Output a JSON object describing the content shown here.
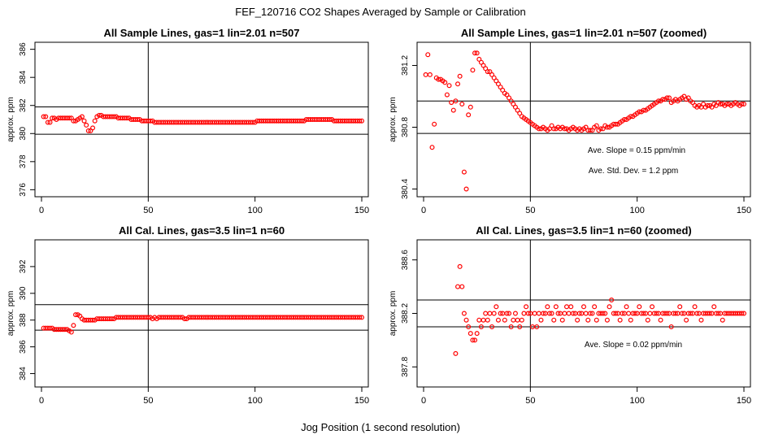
{
  "figure": {
    "title": "FEF_120716  CO2 Shapes Averaged by Sample or Calibration",
    "xlabel": "Jog Position (1 second resolution)"
  },
  "colors": {
    "points": "#ff0000",
    "axes": "#000000"
  },
  "chart_data": [
    {
      "type": "scatter",
      "title": "All Sample Lines, gas=1 lin=2.01 n=507",
      "ylabel": "approx. ppm",
      "xlim": [
        0,
        150
      ],
      "ylim": [
        375.5,
        386.5
      ],
      "xticks": [
        0,
        50,
        100,
        150
      ],
      "yticks": [
        376,
        378,
        380,
        382,
        384,
        386
      ],
      "vline": 50,
      "hlines": [
        379.95,
        381.9
      ],
      "annotations": [],
      "series": [
        {
          "x": "1..150",
          "values": [
            381.2,
            381.2,
            380.8,
            380.8,
            381.1,
            381.1,
            381.0,
            381.1,
            381.1,
            381.1,
            381.1,
            381.1,
            381.1,
            381.1,
            380.9,
            380.9,
            381.0,
            381.1,
            381.2,
            380.9,
            380.6,
            380.2,
            380.2,
            380.4,
            380.9,
            381.2,
            381.3,
            381.3,
            381.2,
            381.2,
            381.2,
            381.2,
            381.2,
            381.2,
            381.2,
            381.1,
            381.1,
            381.1,
            381.1,
            381.1,
            381.1,
            381.0,
            381.0,
            381.0,
            381.0,
            381.0,
            380.9,
            380.9,
            380.9,
            380.9,
            380.9,
            380.9,
            380.8,
            380.8,
            380.8,
            380.8,
            380.8,
            380.8,
            380.8,
            380.8,
            380.8,
            380.8,
            380.8,
            380.8,
            380.8,
            380.8,
            380.8,
            380.8,
            380.8,
            380.8,
            380.8,
            380.8,
            380.8,
            380.8,
            380.8,
            380.8,
            380.8,
            380.8,
            380.8,
            380.8,
            380.8,
            380.8,
            380.8,
            380.8,
            380.8,
            380.8,
            380.8,
            380.8,
            380.8,
            380.8,
            380.8,
            380.8,
            380.8,
            380.8,
            380.8,
            380.8,
            380.8,
            380.8,
            380.8,
            380.8,
            380.9,
            380.9,
            380.9,
            380.9,
            380.9,
            380.9,
            380.9,
            380.9,
            380.9,
            380.9,
            380.9,
            380.9,
            380.9,
            380.9,
            380.9,
            380.9,
            380.9,
            380.9,
            380.9,
            380.9,
            380.9,
            380.9,
            380.9,
            381.0,
            381.0,
            381.0,
            381.0,
            381.0,
            381.0,
            381.0,
            381.0,
            381.0,
            381.0,
            381.0,
            381.0,
            381.0,
            380.9,
            380.9,
            380.9,
            380.9,
            380.9,
            380.9,
            380.9,
            380.9,
            380.9,
            380.9,
            380.9,
            380.9,
            380.9,
            380.9
          ]
        }
      ]
    },
    {
      "type": "scatter",
      "title": "All Sample Lines, gas=1 lin=2.01 n=507 (zoomed)",
      "ylabel": "approx. ppm",
      "xlim": [
        0,
        150
      ],
      "ylim": [
        380.35,
        381.35
      ],
      "xticks": [
        0,
        50,
        100,
        150
      ],
      "yticks": [
        380.4,
        380.8,
        381.2
      ],
      "vline": 50,
      "hlines": [
        380.76,
        380.97
      ],
      "annotations": [
        "Ave. Slope =  0.15  ppm/min",
        "Ave. Std. Dev. =  1.2  ppm"
      ],
      "series": [
        {
          "x": "1..150",
          "values": [
            381.14,
            381.27,
            381.14,
            380.67,
            380.82,
            381.12,
            381.11,
            381.11,
            381.1,
            381.09,
            381.01,
            381.07,
            380.96,
            380.91,
            380.97,
            381.08,
            381.13,
            380.95,
            380.51,
            380.4,
            380.88,
            380.93,
            381.17,
            381.28,
            381.28,
            381.24,
            381.22,
            381.2,
            381.18,
            381.16,
            381.16,
            381.14,
            381.12,
            381.1,
            381.08,
            381.06,
            381.04,
            381.02,
            381.01,
            380.99,
            380.97,
            380.95,
            380.93,
            380.91,
            380.89,
            380.87,
            380.86,
            380.85,
            380.84,
            380.83,
            380.82,
            380.81,
            380.8,
            380.79,
            380.79,
            380.8,
            380.79,
            380.78,
            380.79,
            380.81,
            380.79,
            380.79,
            380.8,
            380.79,
            380.8,
            380.79,
            380.79,
            380.78,
            380.79,
            380.8,
            380.79,
            380.78,
            380.79,
            380.78,
            380.79,
            380.8,
            380.78,
            380.78,
            380.78,
            380.8,
            380.81,
            380.78,
            380.79,
            380.79,
            380.81,
            380.8,
            380.8,
            380.81,
            380.82,
            380.82,
            380.82,
            380.83,
            380.84,
            380.85,
            380.85,
            380.86,
            380.87,
            380.87,
            380.88,
            380.89,
            380.9,
            380.9,
            380.91,
            380.91,
            380.92,
            380.93,
            380.94,
            380.95,
            380.96,
            380.97,
            380.97,
            380.98,
            380.98,
            380.99,
            380.99,
            380.96,
            380.97,
            380.98,
            380.97,
            380.98,
            380.99,
            381.0,
            380.98,
            380.99,
            380.97,
            380.96,
            380.94,
            380.93,
            380.94,
            380.93,
            380.95,
            380.93,
            380.94,
            380.94,
            380.93,
            380.95,
            380.94,
            380.96,
            380.95,
            380.95,
            380.94,
            380.95,
            380.95,
            380.94,
            380.95,
            380.96,
            380.95,
            380.94,
            380.95,
            380.95
          ]
        }
      ]
    },
    {
      "type": "scatter",
      "title": "All Cal. Lines, gas=3.5 lin=1 n=60",
      "ylabel": "approx. ppm",
      "xlim": [
        0,
        150
      ],
      "ylim": [
        383,
        394
      ],
      "xticks": [
        0,
        50,
        100,
        150
      ],
      "yticks": [
        384,
        386,
        388,
        390,
        392
      ],
      "vline": 50,
      "hlines": [
        387.25,
        389.15
      ],
      "annotations": [],
      "series": [
        {
          "x": "1..150",
          "values": [
            387.4,
            387.4,
            387.4,
            387.4,
            387.4,
            387.3,
            387.3,
            387.3,
            387.3,
            387.3,
            387.3,
            387.3,
            387.2,
            387.1,
            387.6,
            388.4,
            388.4,
            388.3,
            388.1,
            388.0,
            388.0,
            388.0,
            388.0,
            388.0,
            388.0,
            388.1,
            388.1,
            388.1,
            388.1,
            388.1,
            388.1,
            388.1,
            388.1,
            388.1,
            388.2,
            388.2,
            388.2,
            388.2,
            388.2,
            388.2,
            388.2,
            388.2,
            388.2,
            388.2,
            388.2,
            388.2,
            388.2,
            388.2,
            388.2,
            388.2,
            388.2,
            388.1,
            388.2,
            388.1,
            388.2,
            388.2,
            388.2,
            388.2,
            388.2,
            388.2,
            388.2,
            388.2,
            388.2,
            388.2,
            388.2,
            388.2,
            388.1,
            388.1,
            388.2,
            388.2,
            388.2,
            388.2,
            388.2,
            388.2,
            388.2,
            388.2,
            388.2,
            388.2,
            388.2,
            388.2,
            388.2,
            388.2,
            388.2,
            388.2,
            388.2,
            388.2,
            388.2,
            388.2,
            388.2,
            388.2,
            388.2,
            388.2,
            388.2,
            388.2,
            388.2,
            388.2,
            388.2,
            388.2,
            388.2,
            388.2,
            388.2,
            388.2,
            388.2,
            388.2,
            388.2,
            388.2,
            388.2,
            388.2,
            388.2,
            388.2,
            388.2,
            388.2,
            388.2,
            388.2,
            388.2,
            388.2,
            388.2,
            388.2,
            388.2,
            388.2,
            388.2,
            388.2,
            388.2,
            388.2,
            388.2,
            388.2,
            388.2,
            388.2,
            388.2,
            388.2,
            388.2,
            388.2,
            388.2,
            388.2,
            388.2,
            388.2,
            388.2,
            388.2,
            388.2,
            388.2,
            388.2,
            388.2,
            388.2,
            388.2,
            388.2,
            388.2,
            388.2,
            388.2,
            388.2,
            388.2
          ]
        }
      ]
    },
    {
      "type": "scatter",
      "title": "All Cal. Lines, gas=3.5 lin=1 n=60 (zoomed)",
      "ylabel": "approx. ppm",
      "xlim": [
        0,
        150
      ],
      "ylim": [
        387.65,
        388.75
      ],
      "xticks": [
        0,
        50,
        100,
        150
      ],
      "yticks": [
        387.8,
        388.2,
        388.6
      ],
      "vline": 50,
      "hlines": [
        388.1,
        388.3
      ],
      "annotations": [
        "Ave. Slope =  0.02  ppm/min"
      ],
      "series": [
        {
          "x": "15..150",
          "values": [
            387.9,
            388.4,
            388.55,
            388.4,
            388.2,
            388.15,
            388.1,
            388.05,
            388.0,
            388.0,
            388.05,
            388.15,
            388.1,
            388.15,
            388.2,
            388.15,
            388.2,
            388.1,
            388.2,
            388.25,
            388.15,
            388.2,
            388.2,
            388.15,
            388.2,
            388.2,
            388.1,
            388.15,
            388.2,
            388.15,
            388.1,
            388.15,
            388.2,
            388.25,
            388.2,
            388.2,
            388.1,
            388.2,
            388.1,
            388.2,
            388.15,
            388.2,
            388.2,
            388.25,
            388.2,
            388.2,
            388.15,
            388.25,
            388.2,
            388.2,
            388.15,
            388.2,
            388.25,
            388.2,
            388.25,
            388.2,
            388.2,
            388.15,
            388.2,
            388.2,
            388.25,
            388.2,
            388.15,
            388.2,
            388.2,
            388.25,
            388.15,
            388.2,
            388.2,
            388.2,
            388.2,
            388.15,
            388.25,
            388.3,
            388.2,
            388.2,
            388.2,
            388.15,
            388.2,
            388.2,
            388.25,
            388.2,
            388.15,
            388.2,
            388.2,
            388.2,
            388.25,
            388.2,
            388.2,
            388.2,
            388.15,
            388.2,
            388.25,
            388.2,
            388.2,
            388.2,
            388.15,
            388.2,
            388.2,
            388.2,
            388.2,
            388.1,
            388.2,
            388.2,
            388.2,
            388.25,
            388.2,
            388.2,
            388.15,
            388.2,
            388.2,
            388.2,
            388.25,
            388.2,
            388.2,
            388.15,
            388.2,
            388.2,
            388.2,
            388.2,
            388.2,
            388.25,
            388.2,
            388.2,
            388.2,
            388.15,
            388.2,
            388.2,
            388.2,
            388.2,
            388.2,
            388.2,
            388.2,
            388.2,
            388.2,
            388.2
          ]
        }
      ]
    }
  ]
}
